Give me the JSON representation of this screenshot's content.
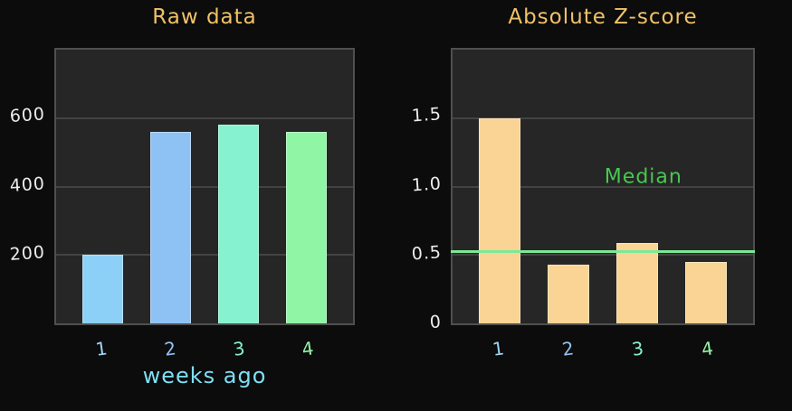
{
  "figure": {
    "background": "#0C0C0C",
    "panel_bg": "#262626",
    "panel_border": "#4F4F4F",
    "gridline_color": "#434343",
    "tick_label_color": "#ECECEC",
    "title_color": "#F0C268"
  },
  "chart_data": [
    {
      "type": "bar",
      "title": "Raw data",
      "xlabel": "weeks ago",
      "xlabel_color": "#7EDFF5",
      "categories": [
        "1",
        "2",
        "3",
        "4"
      ],
      "values": [
        200,
        560,
        580,
        560
      ],
      "bar_colors": [
        "#8DD0F7",
        "#8FC2F4",
        "#87F2D0",
        "#90F5A5"
      ],
      "category_label_colors": [
        "#9ED7F7",
        "#93C3F3",
        "#86EFD2",
        "#95F2A8"
      ],
      "ylim": [
        0,
        800
      ],
      "yticks": [
        200,
        400,
        600
      ],
      "ytick_labels": [
        "200",
        "400",
        "600"
      ],
      "grid": true,
      "legend": "none"
    },
    {
      "type": "bar",
      "title": "Absolute Z-score",
      "xlabel": "",
      "categories": [
        "1",
        "2",
        "3",
        "4"
      ],
      "values": [
        1.5,
        0.43,
        0.59,
        0.45
      ],
      "bar_colors": [
        "#FAD494",
        "#FAD494",
        "#FAD494",
        "#FAD494"
      ],
      "category_label_colors": [
        "#9ED7F7",
        "#93C3F3",
        "#86EFD2",
        "#95F2A8"
      ],
      "ylim": [
        0,
        2
      ],
      "yticks": [
        0,
        0.5,
        1.0,
        1.5
      ],
      "ytick_labels": [
        "0",
        "0.5",
        "1.0",
        "1.5"
      ],
      "grid": true,
      "legend": "none",
      "median": {
        "label": "Median",
        "value": 0.52,
        "line_color": "#7DE896",
        "label_color": "#46C94F",
        "label_x_pct": 63.5,
        "label_y_value": 1.07
      }
    }
  ]
}
